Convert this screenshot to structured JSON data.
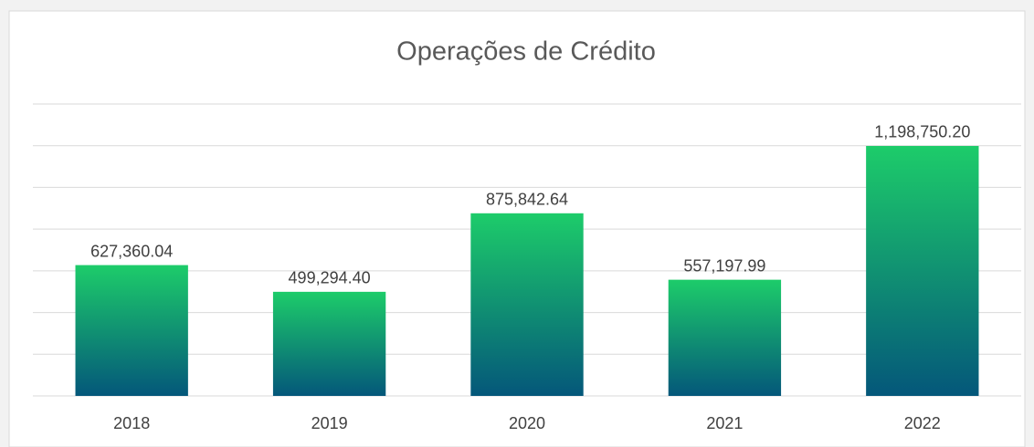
{
  "chart_data": {
    "type": "bar",
    "title": "Operações de Crédito",
    "categories": [
      "2018",
      "2019",
      "2020",
      "2021",
      "2022"
    ],
    "values": [
      627360.04,
      499294.4,
      875842.64,
      557197.99,
      1198750.2
    ],
    "value_labels": [
      "627,360.04",
      "499,294.40",
      "875,842.64",
      "557,197.99",
      "1,198,750.20"
    ],
    "color": {
      "top": "#1dcc6a",
      "bottom": "#04577a"
    },
    "ylim": [
      0,
      1400000
    ],
    "yticks": [
      0,
      200000,
      400000,
      600000,
      800000,
      1000000,
      1200000,
      1400000
    ],
    "grid": true
  }
}
